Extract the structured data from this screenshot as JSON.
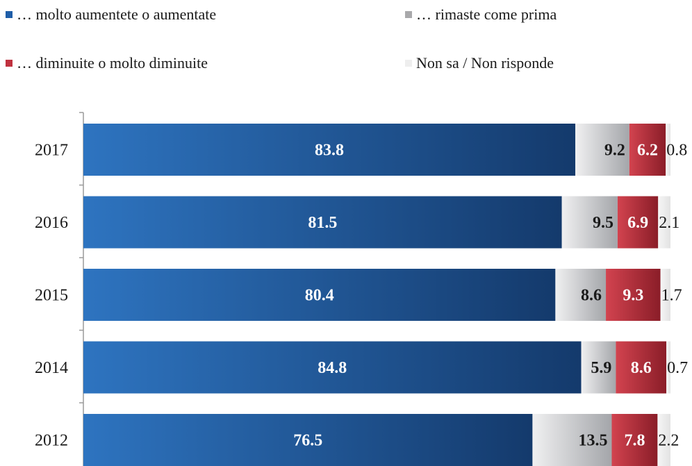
{
  "chart_data": {
    "type": "bar",
    "orientation": "horizontal",
    "stacked": true,
    "categories": [
      "2017",
      "2016",
      "2015",
      "2014",
      "2012"
    ],
    "series": [
      {
        "name": "… molto aumentete o aumentate",
        "values": [
          83.8,
          81.5,
          80.4,
          84.8,
          76.5
        ],
        "color": "#1f5ea8",
        "label_color": "#ffffff"
      },
      {
        "name": "… rimaste come prima",
        "values": [
          9.2,
          9.5,
          8.6,
          5.9,
          13.5
        ],
        "color": "#c8c9cc",
        "label_color": "#1a1a1a"
      },
      {
        "name": "… diminuite  o molto diminuite",
        "values": [
          6.2,
          6.9,
          9.3,
          8.6,
          7.8
        ],
        "color": "#c0323f",
        "label_color": "#ffffff"
      },
      {
        "name": "Non sa / Non risponde",
        "values": [
          0.8,
          2.1,
          1.7,
          0.7,
          2.2
        ],
        "color": "#eeeeee",
        "label_color": "#1a1a1a"
      }
    ],
    "xlim": [
      0,
      100
    ],
    "legend_position": "top",
    "grid": false
  }
}
